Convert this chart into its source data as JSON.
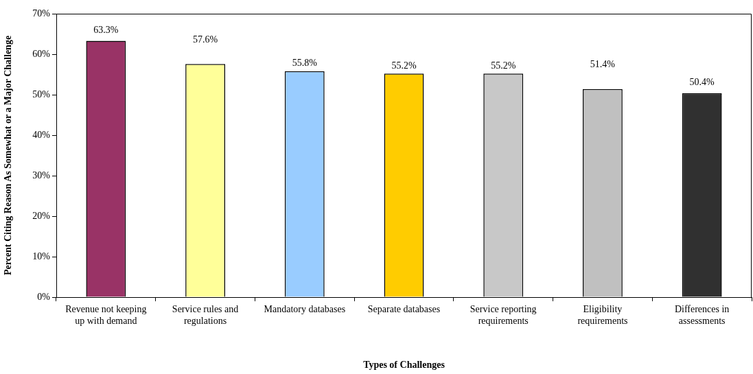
{
  "chart_data": {
    "type": "bar",
    "xlabel": "Types of Challenges",
    "ylabel": "Percent Citing Reason As Somewhat or a Major Challenge",
    "categories": [
      "Revenue not keeping up with demand",
      "Service rules and regulations",
      "Mandatory databases",
      "Separate databases",
      "Service reporting requirements",
      "Eligibility requirements",
      "Differences in assessments"
    ],
    "values": [
      63.3,
      57.6,
      55.8,
      55.2,
      55.2,
      51.4,
      50.4
    ],
    "colors": [
      "#993366",
      "#ffff99",
      "#99ccff",
      "#ffcc00",
      "#c8c8c8",
      "#c0c0c0",
      "#303030"
    ],
    "value_labels": [
      "63.3%",
      "57.6%",
      "55.8%",
      "55.2%",
      "55.2%",
      "51.4%",
      "50.4%"
    ],
    "ylim": [
      0,
      70
    ],
    "yticks": [
      {
        "value": 0,
        "label": "0%"
      },
      {
        "value": 10,
        "label": "10%"
      },
      {
        "value": 20,
        "label": "20%"
      },
      {
        "value": 30,
        "label": "30%"
      },
      {
        "value": 40,
        "label": "40%"
      },
      {
        "value": 50,
        "label": "50%"
      },
      {
        "value": 60,
        "label": "60%"
      },
      {
        "value": 70,
        "label": "70%"
      }
    ],
    "grid": false,
    "legend": false
  }
}
